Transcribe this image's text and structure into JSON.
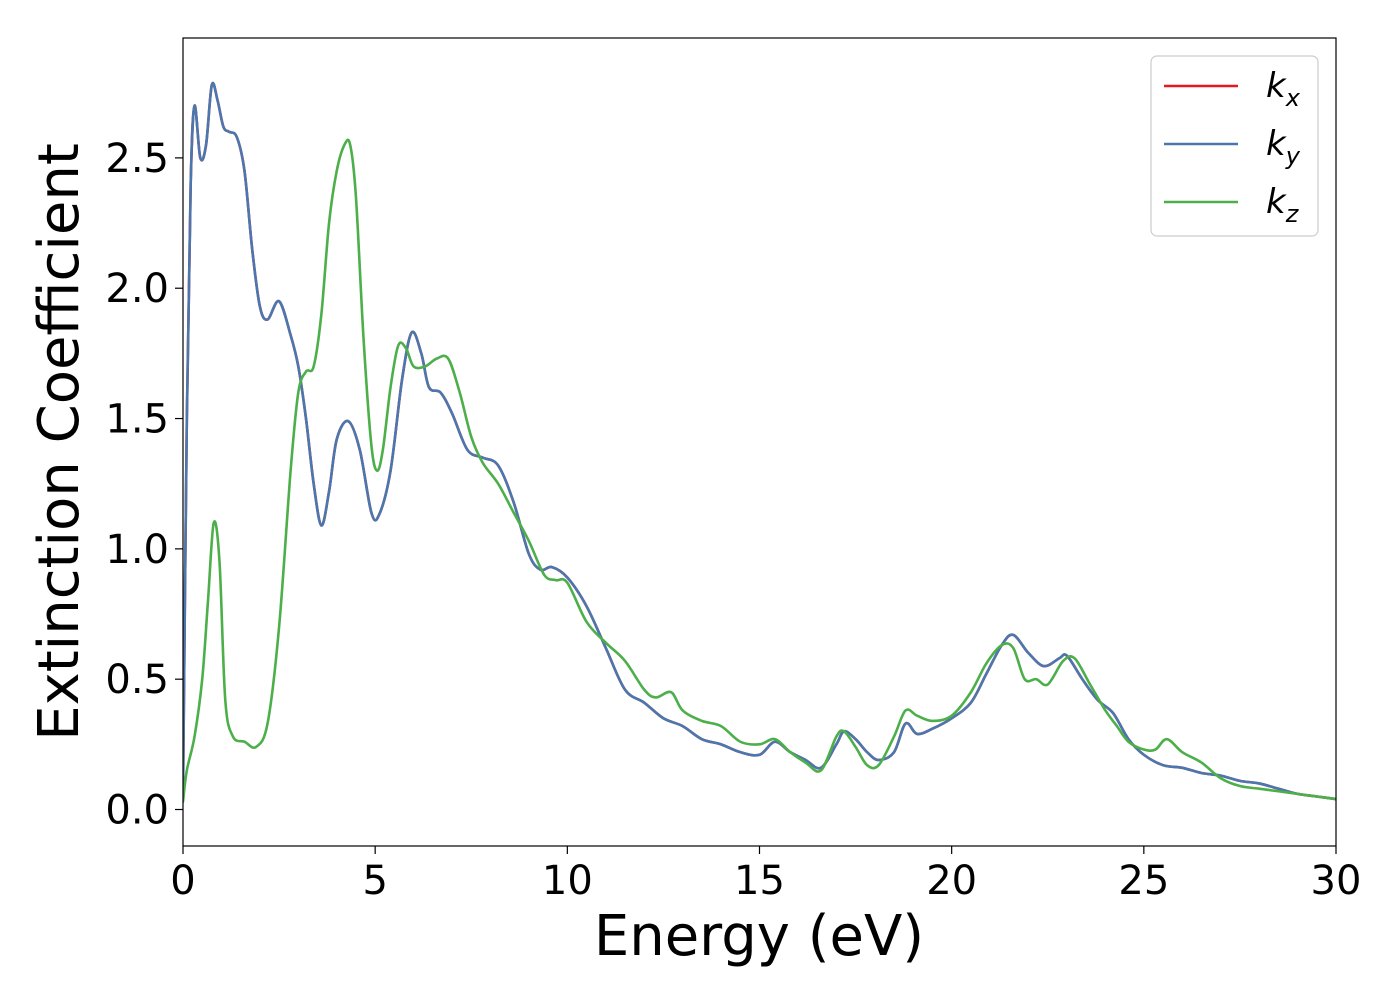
{
  "chart_data": {
    "type": "line",
    "title": "",
    "xlabel": "Energy (eV)",
    "ylabel": "Extinction Coefficient",
    "xlim": [
      0,
      30
    ],
    "ylim": [
      -0.14,
      2.96
    ],
    "grid": false,
    "legend_position": "top-right",
    "x_ticks": [
      "0",
      "5",
      "10",
      "15",
      "20",
      "25",
      "30"
    ],
    "y_ticks": [
      "0.0",
      "0.5",
      "1.0",
      "1.5",
      "2.0",
      "2.5"
    ],
    "series": [
      {
        "name": "k_x",
        "legend_base": "k",
        "legend_sub": "x",
        "color": "#e41a1c",
        "x": [
          0,
          0.1,
          0.2,
          0.3,
          0.45,
          0.6,
          0.75,
          0.9,
          1.05,
          1.2,
          1.4,
          1.6,
          1.8,
          2.0,
          2.2,
          2.5,
          2.8,
          3.0,
          3.2,
          3.4,
          3.6,
          3.8,
          4.0,
          4.3,
          4.6,
          4.9,
          5.1,
          5.4,
          5.7,
          5.95,
          6.2,
          6.4,
          6.7,
          7.0,
          7.4,
          7.8,
          8.2,
          8.6,
          9.0,
          9.3,
          9.6,
          10.0,
          10.5,
          11.0,
          11.5,
          12.0,
          12.5,
          13.0,
          13.5,
          14.0,
          14.5,
          15.0,
          15.4,
          15.8,
          16.2,
          16.6,
          17.0,
          17.2,
          17.5,
          17.8,
          18.1,
          18.5,
          18.8,
          19.1,
          19.5,
          20.0,
          20.5,
          20.9,
          21.3,
          21.6,
          22.0,
          22.4,
          22.8,
          23.0,
          23.4,
          23.8,
          24.2,
          24.6,
          25.0,
          25.5,
          26.0,
          26.5,
          27.0,
          27.5,
          28.0,
          28.5,
          29.0,
          29.5,
          30.0
        ],
        "values": [
          0.05,
          1.5,
          2.4,
          2.7,
          2.5,
          2.55,
          2.78,
          2.72,
          2.62,
          2.6,
          2.58,
          2.45,
          2.15,
          1.93,
          1.88,
          1.95,
          1.82,
          1.7,
          1.5,
          1.25,
          1.09,
          1.22,
          1.42,
          1.49,
          1.38,
          1.14,
          1.13,
          1.3,
          1.65,
          1.83,
          1.75,
          1.62,
          1.6,
          1.52,
          1.38,
          1.35,
          1.32,
          1.18,
          0.98,
          0.92,
          0.93,
          0.89,
          0.78,
          0.62,
          0.46,
          0.41,
          0.35,
          0.32,
          0.27,
          0.25,
          0.22,
          0.21,
          0.26,
          0.22,
          0.19,
          0.16,
          0.25,
          0.3,
          0.27,
          0.22,
          0.19,
          0.22,
          0.33,
          0.29,
          0.31,
          0.35,
          0.41,
          0.52,
          0.63,
          0.67,
          0.6,
          0.55,
          0.58,
          0.59,
          0.5,
          0.42,
          0.37,
          0.27,
          0.21,
          0.17,
          0.16,
          0.14,
          0.13,
          0.11,
          0.1,
          0.08,
          0.06,
          0.05,
          0.04
        ]
      },
      {
        "name": "k_y",
        "legend_base": "k",
        "legend_sub": "y",
        "color": "#4a77ae",
        "x": [
          0,
          0.1,
          0.2,
          0.3,
          0.45,
          0.6,
          0.75,
          0.9,
          1.05,
          1.2,
          1.4,
          1.6,
          1.8,
          2.0,
          2.2,
          2.5,
          2.8,
          3.0,
          3.2,
          3.4,
          3.6,
          3.8,
          4.0,
          4.3,
          4.6,
          4.9,
          5.1,
          5.4,
          5.7,
          5.95,
          6.2,
          6.4,
          6.7,
          7.0,
          7.4,
          7.8,
          8.2,
          8.6,
          9.0,
          9.3,
          9.6,
          10.0,
          10.5,
          11.0,
          11.5,
          12.0,
          12.5,
          13.0,
          13.5,
          14.0,
          14.5,
          15.0,
          15.4,
          15.8,
          16.2,
          16.6,
          17.0,
          17.2,
          17.5,
          17.8,
          18.1,
          18.5,
          18.8,
          19.1,
          19.5,
          20.0,
          20.5,
          20.9,
          21.3,
          21.6,
          22.0,
          22.4,
          22.8,
          23.0,
          23.4,
          23.8,
          24.2,
          24.6,
          25.0,
          25.5,
          26.0,
          26.5,
          27.0,
          27.5,
          28.0,
          28.5,
          29.0,
          29.5,
          30.0
        ],
        "values": [
          0.05,
          1.5,
          2.4,
          2.7,
          2.5,
          2.55,
          2.78,
          2.72,
          2.62,
          2.6,
          2.58,
          2.45,
          2.15,
          1.93,
          1.88,
          1.95,
          1.82,
          1.7,
          1.5,
          1.25,
          1.09,
          1.22,
          1.42,
          1.49,
          1.38,
          1.14,
          1.13,
          1.3,
          1.65,
          1.83,
          1.75,
          1.62,
          1.6,
          1.52,
          1.38,
          1.35,
          1.32,
          1.18,
          0.98,
          0.92,
          0.93,
          0.89,
          0.78,
          0.62,
          0.46,
          0.41,
          0.35,
          0.32,
          0.27,
          0.25,
          0.22,
          0.21,
          0.26,
          0.22,
          0.19,
          0.16,
          0.25,
          0.3,
          0.27,
          0.22,
          0.19,
          0.22,
          0.33,
          0.29,
          0.31,
          0.35,
          0.41,
          0.52,
          0.63,
          0.67,
          0.6,
          0.55,
          0.58,
          0.59,
          0.5,
          0.42,
          0.37,
          0.27,
          0.21,
          0.17,
          0.16,
          0.14,
          0.13,
          0.11,
          0.1,
          0.08,
          0.06,
          0.05,
          0.04
        ]
      },
      {
        "name": "k_z",
        "legend_base": "k",
        "legend_sub": "z",
        "color": "#4daf4a",
        "x": [
          0,
          0.1,
          0.3,
          0.5,
          0.65,
          0.8,
          0.95,
          1.1,
          1.3,
          1.6,
          1.9,
          2.2,
          2.5,
          2.8,
          3.0,
          3.2,
          3.4,
          3.6,
          3.8,
          4.0,
          4.2,
          4.35,
          4.5,
          4.7,
          4.9,
          5.05,
          5.2,
          5.4,
          5.6,
          5.8,
          6.0,
          6.3,
          6.6,
          6.9,
          7.2,
          7.5,
          7.8,
          8.2,
          8.6,
          9.0,
          9.4,
          9.7,
          10.0,
          10.5,
          11.0,
          11.5,
          12.0,
          12.3,
          12.7,
          13.0,
          13.5,
          14.0,
          14.5,
          15.0,
          15.4,
          15.8,
          16.2,
          16.6,
          17.0,
          17.2,
          17.5,
          17.8,
          18.1,
          18.5,
          18.8,
          19.1,
          19.5,
          20.0,
          20.5,
          20.9,
          21.3,
          21.6,
          21.9,
          22.2,
          22.5,
          22.9,
          23.2,
          23.6,
          24.0,
          24.3,
          24.6,
          25.0,
          25.3,
          25.6,
          26.0,
          26.5,
          27.0,
          27.5,
          28.0,
          28.5,
          29.0,
          29.5,
          30.0
        ],
        "values": [
          0.03,
          0.15,
          0.28,
          0.5,
          0.8,
          1.1,
          0.95,
          0.42,
          0.28,
          0.26,
          0.24,
          0.33,
          0.7,
          1.3,
          1.6,
          1.68,
          1.7,
          1.9,
          2.25,
          2.45,
          2.55,
          2.55,
          2.35,
          1.8,
          1.4,
          1.3,
          1.38,
          1.62,
          1.78,
          1.77,
          1.7,
          1.7,
          1.73,
          1.73,
          1.6,
          1.43,
          1.33,
          1.25,
          1.14,
          1.03,
          0.9,
          0.88,
          0.87,
          0.72,
          0.64,
          0.57,
          0.46,
          0.43,
          0.45,
          0.38,
          0.34,
          0.32,
          0.26,
          0.25,
          0.27,
          0.22,
          0.18,
          0.15,
          0.28,
          0.3,
          0.24,
          0.17,
          0.17,
          0.28,
          0.38,
          0.36,
          0.34,
          0.36,
          0.45,
          0.56,
          0.63,
          0.62,
          0.5,
          0.5,
          0.48,
          0.57,
          0.58,
          0.48,
          0.38,
          0.32,
          0.26,
          0.23,
          0.23,
          0.27,
          0.22,
          0.18,
          0.12,
          0.09,
          0.08,
          0.07,
          0.06,
          0.05,
          0.04
        ]
      }
    ]
  }
}
